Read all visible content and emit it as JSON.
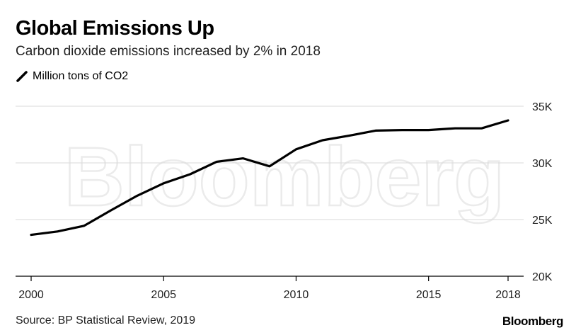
{
  "header": {
    "title": "Global Emissions Up",
    "subtitle": "Carbon dioxide emissions increased by 2% in 2018"
  },
  "legend": {
    "label": "Million tons of CO2"
  },
  "footer": {
    "source": "Source: BP Statistical Review, 2019",
    "brand": "Bloomberg"
  },
  "watermark": "Bloomberg",
  "colors": {
    "line": "#000000",
    "grid": "#d9d9d9",
    "axis": "#000000",
    "watermark": "#f2f2f2"
  },
  "chart_data": {
    "type": "line",
    "title": "Global Emissions Up",
    "subtitle": "Carbon dioxide emissions increased by 2% in 2018",
    "ylabel": "Million tons of CO2",
    "xlabel": "",
    "x": [
      2000,
      2001,
      2002,
      2003,
      2004,
      2005,
      2006,
      2007,
      2008,
      2009,
      2010,
      2011,
      2012,
      2013,
      2014,
      2015,
      2016,
      2017,
      2018
    ],
    "series": [
      {
        "name": "Million tons of CO2",
        "values": [
          23650,
          23950,
          24450,
          25800,
          27100,
          28200,
          29000,
          30100,
          30400,
          29700,
          31200,
          32000,
          32400,
          32850,
          32900,
          32900,
          33050,
          33050,
          33750
        ]
      }
    ],
    "xlim": [
      2000,
      2018
    ],
    "ylim": [
      20000,
      35000
    ],
    "x_ticks": [
      2000,
      2005,
      2010,
      2015,
      2018
    ],
    "x_tick_labels": [
      "2000",
      "2005",
      "2010",
      "2015",
      "2018"
    ],
    "y_ticks": [
      20000,
      25000,
      30000,
      35000
    ],
    "y_tick_labels": [
      "20K",
      "25K",
      "30K",
      "35K"
    ],
    "grid": true,
    "y_axis_side": "right"
  }
}
